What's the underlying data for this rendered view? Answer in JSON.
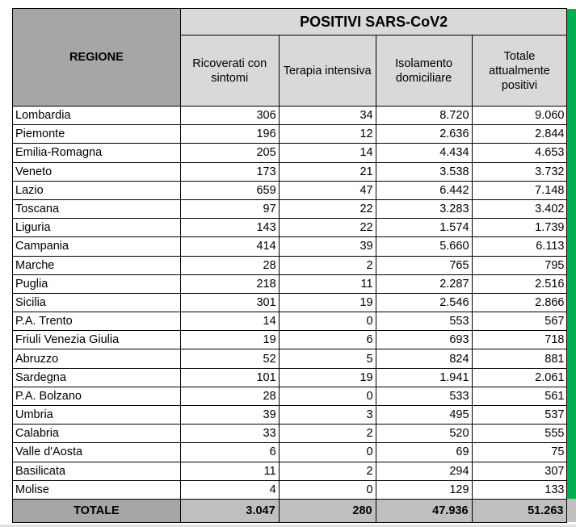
{
  "header": {
    "region": "REGIONE",
    "group": "POSITIVI SARS-CoV2",
    "columns": [
      "Ricoverati con sintomi",
      "Terapia intensiva",
      "Isolamento domiciliare",
      "Totale attualmente positivi"
    ]
  },
  "rows": [
    [
      "Lombardia",
      "306",
      "34",
      "8.720",
      "9.060"
    ],
    [
      "Piemonte",
      "196",
      "12",
      "2.636",
      "2.844"
    ],
    [
      "Emilia-Romagna",
      "205",
      "14",
      "4.434",
      "4.653"
    ],
    [
      "Veneto",
      "173",
      "21",
      "3.538",
      "3.732"
    ],
    [
      "Lazio",
      "659",
      "47",
      "6.442",
      "7.148"
    ],
    [
      "Toscana",
      "97",
      "22",
      "3.283",
      "3.402"
    ],
    [
      "Liguria",
      "143",
      "22",
      "1.574",
      "1.739"
    ],
    [
      "Campania",
      "414",
      "39",
      "5.660",
      "6.113"
    ],
    [
      "Marche",
      "28",
      "2",
      "765",
      "795"
    ],
    [
      "Puglia",
      "218",
      "11",
      "2.287",
      "2.516"
    ],
    [
      "Sicilia",
      "301",
      "19",
      "2.546",
      "2.866"
    ],
    [
      "P.A. Trento",
      "14",
      "0",
      "553",
      "567"
    ],
    [
      "Friuli Venezia Giulia",
      "19",
      "6",
      "693",
      "718"
    ],
    [
      "Abruzzo",
      "52",
      "5",
      "824",
      "881"
    ],
    [
      "Sardegna",
      "101",
      "19",
      "1.941",
      "2.061"
    ],
    [
      "P.A. Bolzano",
      "28",
      "0",
      "533",
      "561"
    ],
    [
      "Umbria",
      "39",
      "3",
      "495",
      "537"
    ],
    [
      "Calabria",
      "33",
      "2",
      "520",
      "555"
    ],
    [
      "Valle d'Aosta",
      "6",
      "0",
      "69",
      "75"
    ],
    [
      "Basilicata",
      "11",
      "2",
      "294",
      "307"
    ],
    [
      "Molise",
      "4",
      "0",
      "129",
      "133"
    ]
  ],
  "totals": [
    "TOTALE",
    "3.047",
    "280",
    "47.936",
    "51.263"
  ],
  "colors": {
    "header_gray": "#a6a6a6",
    "header_light": "#d9d9d9",
    "accent_green": "#00b050"
  }
}
